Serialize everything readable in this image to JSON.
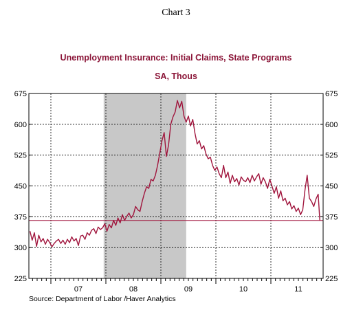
{
  "chart_data": {
    "type": "line",
    "header": "Chart 3",
    "title": "Unemployment Insurance: Initial Claims, State Programs",
    "subtitle": "SA, Thous",
    "source": "Source:  Department of Labor /Haver Analytics",
    "ylim": [
      225,
      675
    ],
    "yticks": [
      "225",
      "300",
      "375",
      "450",
      "525",
      "600",
      "675"
    ],
    "xlim": [
      2006.6,
      2011.95
    ],
    "xlabels": [
      {
        "label": "07",
        "x": 2007.5
      },
      {
        "label": "08",
        "x": 2008.5
      },
      {
        "label": "09",
        "x": 2009.5
      },
      {
        "label": "10",
        "x": 2010.5
      },
      {
        "label": "11",
        "x": 2011.5
      }
    ],
    "year_gridlines": [
      2007.0,
      2008.0,
      2009.0,
      2010.0,
      2011.0
    ],
    "recession_band": [
      2007.96,
      2009.46
    ],
    "reference_line": 366,
    "grid": "dashed",
    "line_color": "#a0143c",
    "band_color": "#c8c8c8",
    "series": [
      {
        "x": [
          2006.62,
          2006.66,
          2006.7,
          2006.74,
          2006.78,
          2006.82,
          2006.86,
          2006.9,
          2006.94,
          2006.98,
          2007.02,
          2007.06,
          2007.1,
          2007.14,
          2007.18,
          2007.22,
          2007.26,
          2007.3,
          2007.34,
          2007.38,
          2007.42,
          2007.46,
          2007.5,
          2007.54,
          2007.58,
          2007.62,
          2007.66,
          2007.7,
          2007.74,
          2007.78,
          2007.82,
          2007.86,
          2007.9,
          2007.94,
          2007.98,
          2008.02,
          2008.06,
          2008.1,
          2008.14,
          2008.18,
          2008.22,
          2008.26,
          2008.3,
          2008.34,
          2008.38,
          2008.42,
          2008.46,
          2008.5,
          2008.54,
          2008.58,
          2008.62,
          2008.66,
          2008.7,
          2008.74,
          2008.78,
          2008.82,
          2008.86,
          2008.9,
          2008.94,
          2008.98,
          2009.02,
          2009.06,
          2009.1,
          2009.14,
          2009.18,
          2009.22,
          2009.26,
          2009.3,
          2009.34,
          2009.38,
          2009.42,
          2009.46,
          2009.5,
          2009.54,
          2009.58,
          2009.62,
          2009.66,
          2009.7,
          2009.74,
          2009.78,
          2009.82,
          2009.86,
          2009.9,
          2009.94,
          2009.98,
          2010.02,
          2010.06,
          2010.1,
          2010.14,
          2010.18,
          2010.22,
          2010.26,
          2010.3,
          2010.34,
          2010.38,
          2010.42,
          2010.46,
          2010.5,
          2010.54,
          2010.58,
          2010.62,
          2010.66,
          2010.7,
          2010.74,
          2010.78,
          2010.82,
          2010.86,
          2010.9,
          2010.94,
          2010.98,
          2011.02,
          2011.06,
          2011.1,
          2011.14,
          2011.18,
          2011.22,
          2011.26,
          2011.3,
          2011.34,
          2011.38,
          2011.42,
          2011.46,
          2011.5,
          2011.54,
          2011.58,
          2011.62,
          2011.66,
          2011.7,
          2011.74,
          2011.78,
          2011.82,
          2011.86,
          2011.89
        ],
        "values": [
          340,
          318,
          336,
          303,
          330,
          314,
          322,
          308,
          320,
          312,
          302,
          310,
          316,
          320,
          310,
          318,
          308,
          320,
          312,
          326,
          316,
          322,
          305,
          328,
          330,
          320,
          336,
          330,
          342,
          346,
          334,
          350,
          344,
          348,
          358,
          340,
          356,
          348,
          366,
          354,
          372,
          360,
          380,
          366,
          376,
          384,
          372,
          380,
          400,
          392,
          388,
          412,
          432,
          448,
          444,
          466,
          462,
          476,
          500,
          530,
          560,
          580,
          522,
          550,
          600,
          618,
          630,
          658,
          640,
          656,
          620,
          605,
          620,
          596,
          612,
          578,
          552,
          560,
          540,
          548,
          528,
          516,
          520,
          500,
          488,
          496,
          480,
          470,
          500,
          470,
          484,
          456,
          476,
          460,
          468,
          452,
          472,
          464,
          460,
          470,
          458,
          476,
          462,
          472,
          480,
          454,
          470,
          460,
          444,
          466,
          450,
          432,
          448,
          420,
          438,
          414,
          420,
          404,
          412,
          394,
          402,
          388,
          396,
          380,
          392,
          440,
          476,
          420,
          412,
          400,
          418,
          430,
          366
        ]
      }
    ]
  }
}
